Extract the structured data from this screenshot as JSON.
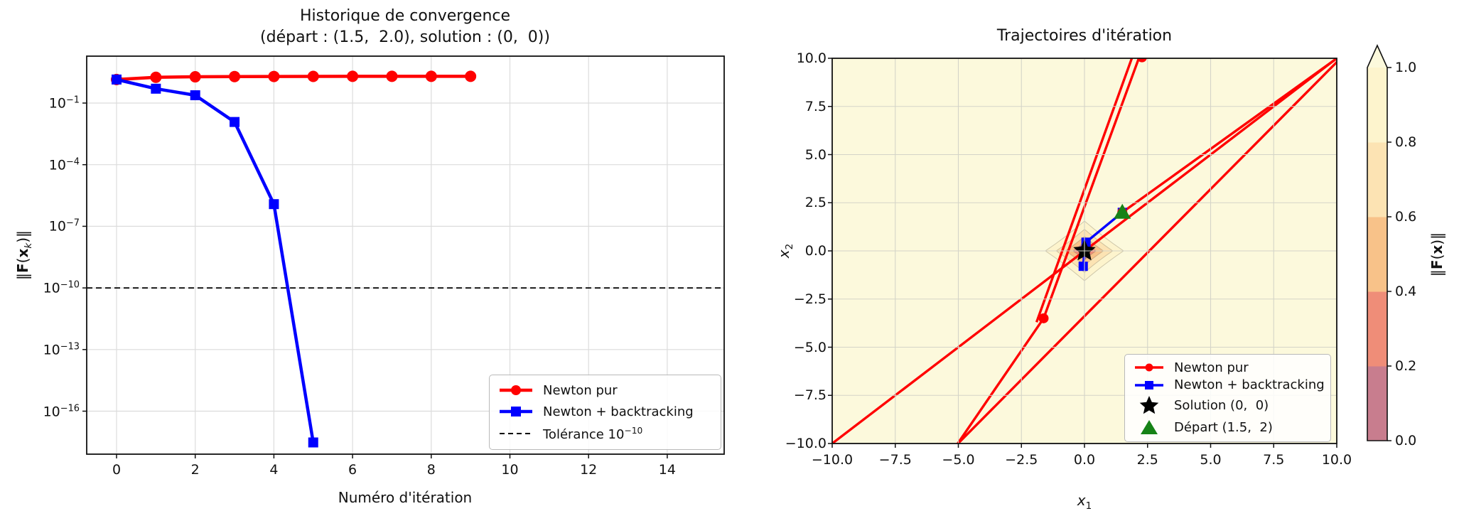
{
  "left_plot": {
    "title_line1": "Historique de convergence",
    "title_line2": "(départ : (1.5,  2.0), solution : (0,  0))",
    "xlabel": "Numéro d'itération",
    "ylabel_parts": {
      "bar1": "‖",
      "F": "F",
      "lp": "(",
      "x": "x",
      "sub": "k",
      "rp": ")‖"
    },
    "x_ticks": [
      {
        "label": "0",
        "v": 0
      },
      {
        "label": "2",
        "v": 2
      },
      {
        "label": "4",
        "v": 4
      },
      {
        "label": "6",
        "v": 6
      },
      {
        "label": "8",
        "v": 8
      },
      {
        "label": "10",
        "v": 10
      },
      {
        "label": "12",
        "v": 12
      },
      {
        "label": "14",
        "v": 14
      }
    ],
    "y_ticks": [
      {
        "base": "10",
        "exp": "−1",
        "e": -1
      },
      {
        "base": "10",
        "exp": "−4",
        "e": -4
      },
      {
        "base": "10",
        "exp": "−7",
        "e": -7
      },
      {
        "base": "10",
        "exp": "−10",
        "e": -10
      },
      {
        "base": "10",
        "exp": "−13",
        "e": -13
      },
      {
        "base": "10",
        "exp": "−16",
        "e": -16
      }
    ],
    "legend": {
      "newton_label": "Newton pur",
      "backtracking_label": "Newton + backtracking",
      "tolerance_label_pre": "Tolérance 10",
      "tolerance_label_sup": "−10"
    },
    "chart_data": {
      "type": "line",
      "yscale": "log",
      "xlim": [
        -0.76,
        15.45
      ],
      "ylim": [
        3e-19,
        20
      ],
      "grid": true,
      "legend_position": "lower right",
      "series": [
        {
          "name": "Newton pur",
          "color": "#ff0000",
          "marker": "circle",
          "x": [
            0,
            1,
            2,
            3,
            4,
            5,
            6,
            7,
            8,
            9
          ],
          "y": [
            1.4,
            1.8,
            1.9,
            1.95,
            1.97,
            1.98,
            2.0,
            2.0,
            2.0,
            2.0
          ]
        },
        {
          "name": "Newton + backtracking",
          "color": "#0000ff",
          "marker": "square",
          "x": [
            0,
            1,
            2,
            3,
            4,
            5
          ],
          "y": [
            1.4,
            0.5,
            0.24,
            0.012,
            1.2e-06,
            3e-18
          ]
        }
      ],
      "tolerance_line": {
        "y": 1e-10,
        "style": "dashed",
        "color": "#000000"
      }
    }
  },
  "right_plot": {
    "title": "Trajectoires d'itération",
    "xlabel_parts": {
      "base": "x",
      "sub": "1"
    },
    "ylabel_parts": {
      "base": "x",
      "sub": "2"
    },
    "x_ticks": [
      {
        "label": "−10.0",
        "v": -10
      },
      {
        "label": "−7.5",
        "v": -7.5
      },
      {
        "label": "−5.0",
        "v": -5
      },
      {
        "label": "−2.5",
        "v": -2.5
      },
      {
        "label": "0.0",
        "v": 0
      },
      {
        "label": "2.5",
        "v": 2.5
      },
      {
        "label": "5.0",
        "v": 5
      },
      {
        "label": "7.5",
        "v": 7.5
      },
      {
        "label": "10.0",
        "v": 10
      }
    ],
    "y_ticks": [
      {
        "label": "10.0",
        "v": 10
      },
      {
        "label": "7.5",
        "v": 7.5
      },
      {
        "label": "5.0",
        "v": 5
      },
      {
        "label": "2.5",
        "v": 2.5
      },
      {
        "label": "0.0",
        "v": 0
      },
      {
        "label": "−2.5",
        "v": -2.5
      },
      {
        "label": "−5.0",
        "v": -5
      },
      {
        "label": "−7.5",
        "v": -7.5
      },
      {
        "label": "−10.0",
        "v": -10
      }
    ],
    "legend": {
      "newton_label": "Newton pur",
      "backtracking_label": "Newton + backtracking",
      "solution_label": "Solution (0,  0)",
      "start_label": "Départ (1.5,  2)"
    },
    "chart_data": {
      "type": "trajectory",
      "xlim": [
        -10,
        10
      ],
      "ylim": [
        -10,
        10
      ],
      "background": "#fcf9dc",
      "grid": true,
      "contour_rings": [
        {
          "r": 1.55,
          "color": "#fdf4cd"
        },
        {
          "r": 1.12,
          "color": "#fce3b3"
        },
        {
          "r": 0.75,
          "color": "#f8c289"
        },
        {
          "r": 0.46,
          "color": "#ef8d78"
        },
        {
          "r": 0.24,
          "color": "#c87d8e"
        }
      ],
      "newton_pur": {
        "color": "#ff0000",
        "segments": [
          [
            [
              1.5,
              2.0
            ],
            [
              10.6,
              10.56
            ]
          ],
          [
            [
              10.4,
              10.33
            ],
            [
              -5.05,
              -10.05
            ],
            [
              -1.62,
              -3.5
            ],
            [
              2.28,
              10.45
            ]
          ],
          [
            [
              2.0,
              10.45
            ],
            [
              -1.9,
              -3.7
            ]
          ],
          [
            [
              -10.6,
              -10.6
            ],
            [
              10.6,
              10.6
            ]
          ]
        ],
        "markers": [
          [
            1.5,
            2.0
          ],
          [
            -1.62,
            -3.5
          ],
          [
            2.28,
            10.05
          ]
        ]
      },
      "backtracking": {
        "color": "#0000ff",
        "path": [
          [
            1.5,
            2.0
          ],
          [
            0.06,
            0.45
          ],
          [
            -0.05,
            -0.8
          ],
          [
            0.0,
            0.0
          ]
        ]
      },
      "solution": {
        "point": [
          0,
          0
        ],
        "color": "#000000"
      },
      "start": {
        "point": [
          1.5,
          2
        ],
        "color": "#168216"
      }
    }
  },
  "colorbar": {
    "label_parts": {
      "bar1": "‖",
      "F": "F",
      "lp": "(",
      "x": "x",
      "rp": ")‖"
    },
    "ticks": [
      {
        "label": "1.0",
        "v": 1.0
      },
      {
        "label": "0.8",
        "v": 0.8
      },
      {
        "label": "0.6",
        "v": 0.6
      },
      {
        "label": "0.4",
        "v": 0.4
      },
      {
        "label": "0.2",
        "v": 0.2
      },
      {
        "label": "0.0",
        "v": 0.0
      }
    ],
    "bands": [
      {
        "range": [
          0.0,
          0.2
        ],
        "color": "#c87d8e"
      },
      {
        "range": [
          0.2,
          0.4
        ],
        "color": "#ef8d78"
      },
      {
        "range": [
          0.4,
          0.6
        ],
        "color": "#f8c289"
      },
      {
        "range": [
          0.6,
          0.8
        ],
        "color": "#fce3b3"
      },
      {
        "range": [
          0.8,
          1.0
        ],
        "color": "#fdf4cd"
      }
    ],
    "over_color": "#fcf9dc"
  }
}
